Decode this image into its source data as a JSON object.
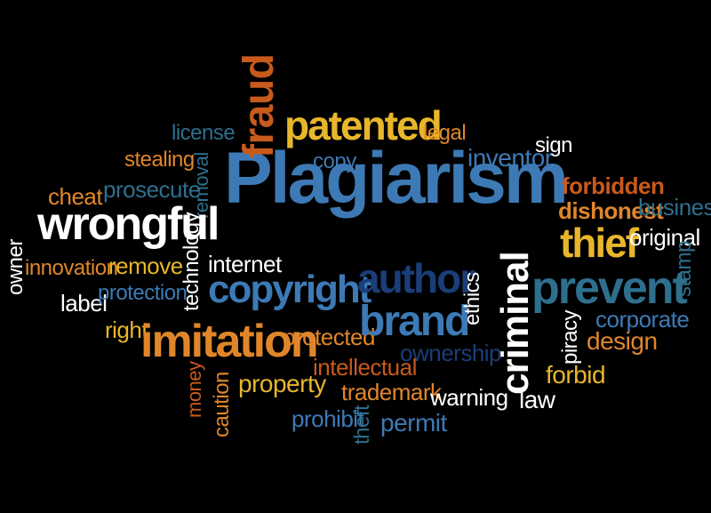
{
  "colors": {
    "background": "#000000",
    "steel_blue": "#3d7ab5",
    "navy": "#1a3e78",
    "teal": "#2e6f8e",
    "orange": "#e0862a",
    "dark_orange": "#c85a1c",
    "yellow": "#e8b62a",
    "white": "#ffffff"
  },
  "words": [
    {
      "text": "Plagiarism"
    },
    {
      "text": "fraud"
    },
    {
      "text": "patented"
    },
    {
      "text": "legal"
    },
    {
      "text": "license"
    },
    {
      "text": "stealing"
    },
    {
      "text": "removal"
    },
    {
      "text": "copy"
    },
    {
      "text": "inventor"
    },
    {
      "text": "sign"
    },
    {
      "text": "cheat"
    },
    {
      "text": "prosecute"
    },
    {
      "text": "wrongful"
    },
    {
      "text": "forbidden"
    },
    {
      "text": "dishonest"
    },
    {
      "text": "business"
    },
    {
      "text": "thief"
    },
    {
      "text": "original"
    },
    {
      "text": "owner"
    },
    {
      "text": "innovation"
    },
    {
      "text": "remove"
    },
    {
      "text": "technology"
    },
    {
      "text": "internet"
    },
    {
      "text": "author"
    },
    {
      "text": "prevent"
    },
    {
      "text": "stamp"
    },
    {
      "text": "label"
    },
    {
      "text": "protection"
    },
    {
      "text": "copyright"
    },
    {
      "text": "ethics"
    },
    {
      "text": "criminal"
    },
    {
      "text": "brand"
    },
    {
      "text": "corporate"
    },
    {
      "text": "right"
    },
    {
      "text": "imitation"
    },
    {
      "text": "protected"
    },
    {
      "text": "piracy"
    },
    {
      "text": "design"
    },
    {
      "text": "ownership"
    },
    {
      "text": "intellectual"
    },
    {
      "text": "forbid"
    },
    {
      "text": "money"
    },
    {
      "text": "caution"
    },
    {
      "text": "property"
    },
    {
      "text": "trademark"
    },
    {
      "text": "warning"
    },
    {
      "text": "law"
    },
    {
      "text": "prohibit"
    },
    {
      "text": "theft"
    },
    {
      "text": "permit"
    }
  ]
}
